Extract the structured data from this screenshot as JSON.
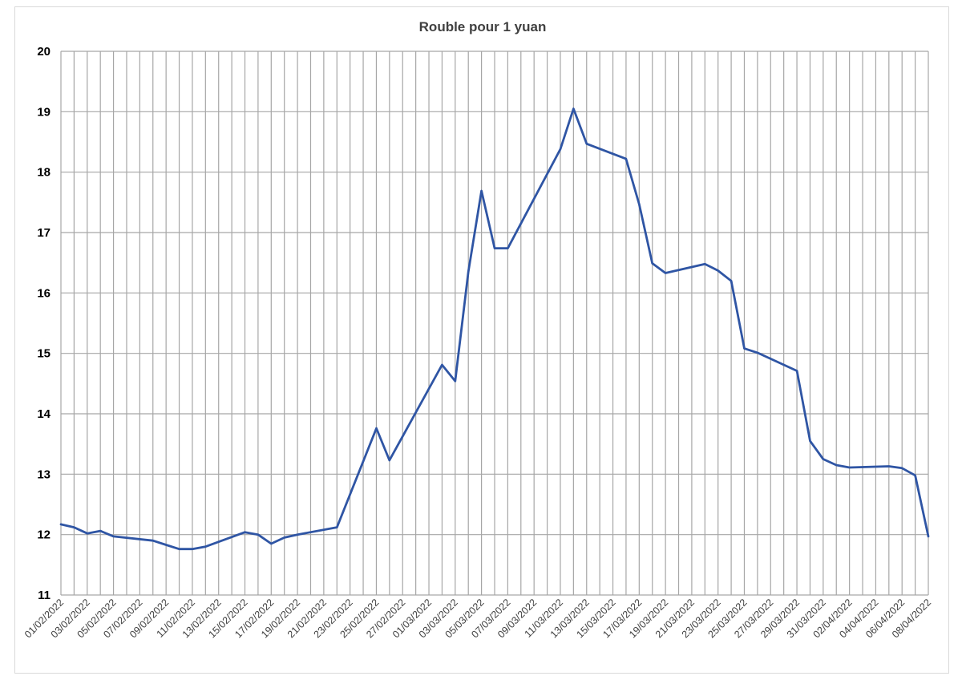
{
  "chart_data": {
    "type": "line",
    "title": "Rouble pour 1 yuan",
    "xlabel": "",
    "ylabel": "",
    "ylim": [
      11,
      20
    ],
    "yticks": [
      "11",
      "12",
      "13",
      "14",
      "15",
      "16",
      "17",
      "18",
      "19",
      "20"
    ],
    "xlim": [
      "2022-02-01",
      "2022-04-08"
    ],
    "xtick_labels": [
      "01/02/2022",
      "03/02/2022",
      "05/02/2022",
      "07/02/2022",
      "09/02/2022",
      "11/02/2022",
      "13/02/2022",
      "15/02/2022",
      "17/02/2022",
      "19/02/2022",
      "21/02/2022",
      "23/02/2022",
      "25/02/2022",
      "27/02/2022",
      "01/03/2022",
      "03/03/2022",
      "05/03/2022",
      "07/03/2022",
      "09/03/2022",
      "11/03/2022",
      "13/03/2022",
      "15/03/2022",
      "17/03/2022",
      "19/03/2022",
      "21/03/2022",
      "23/03/2022",
      "25/03/2022",
      "27/03/2022",
      "29/03/2022",
      "31/03/2022",
      "02/04/2022",
      "04/04/2022",
      "06/04/2022",
      "08/04/2022"
    ],
    "grid": true,
    "legend": "none",
    "series": [
      {
        "color": "#2f55a4",
        "x": [
          "2022-02-01",
          "2022-02-02",
          "2022-02-03",
          "2022-02-04",
          "2022-02-05",
          "2022-02-08",
          "2022-02-09",
          "2022-02-10",
          "2022-02-11",
          "2022-02-12",
          "2022-02-15",
          "2022-02-16",
          "2022-02-17",
          "2022-02-18",
          "2022-02-19",
          "2022-02-22",
          "2022-02-25",
          "2022-02-26",
          "2022-03-02",
          "2022-03-03",
          "2022-03-04",
          "2022-03-05",
          "2022-03-06",
          "2022-03-07",
          "2022-03-11",
          "2022-03-12",
          "2022-03-13",
          "2022-03-16",
          "2022-03-17",
          "2022-03-18",
          "2022-03-19",
          "2022-03-22",
          "2022-03-23",
          "2022-03-24",
          "2022-03-25",
          "2022-03-26",
          "2022-03-29",
          "2022-03-30",
          "2022-03-31",
          "2022-04-01",
          "2022-04-02",
          "2022-04-05",
          "2022-04-06",
          "2022-04-07",
          "2022-04-08"
        ],
        "y": [
          12.17,
          12.12,
          12.02,
          12.06,
          11.97,
          11.9,
          11.83,
          11.76,
          11.76,
          11.8,
          12.04,
          12.0,
          11.85,
          11.95,
          12.0,
          12.12,
          13.76,
          13.23,
          14.81,
          14.54,
          16.35,
          17.69,
          16.74,
          16.74,
          18.38,
          19.05,
          18.47,
          18.22,
          17.47,
          16.49,
          16.33,
          16.48,
          16.37,
          16.2,
          15.08,
          15.01,
          14.71,
          13.55,
          13.25,
          13.15,
          13.11,
          13.13,
          13.1,
          12.98,
          11.97
        ]
      }
    ]
  }
}
